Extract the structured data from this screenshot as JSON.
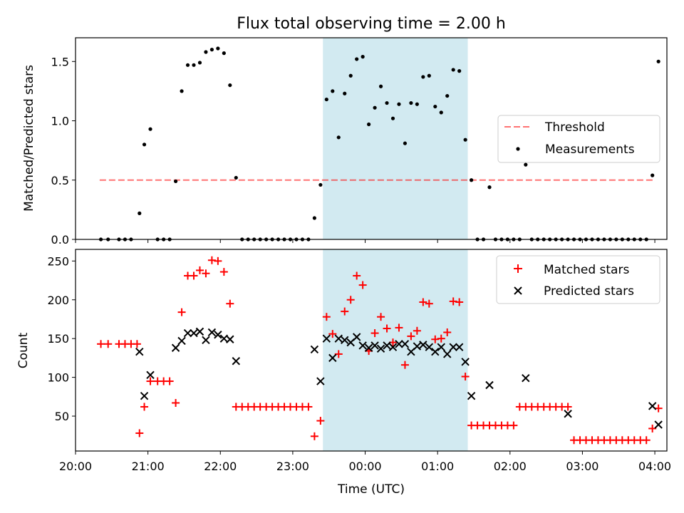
{
  "title": "Flux total observing time = 2.00 h",
  "chart_data": [
    {
      "type": "scatter",
      "ylabel": "Matched/Predicted stars",
      "ylim": [
        0,
        1.7
      ],
      "yticks": [
        "0.0",
        "0.5",
        "1.0",
        "1.5"
      ],
      "shaded_band": {
        "from": "23:25",
        "to": "01:25",
        "color": "#add8e6"
      },
      "legend": {
        "placement": "center-right",
        "items": [
          "Threshold",
          "Measurements"
        ]
      },
      "threshold": {
        "name": "Threshold",
        "color": "#ff0000",
        "value": 0.5,
        "from": "20:20",
        "to": "04:00"
      },
      "series": [
        {
          "name": "Measurements",
          "color": "#000000",
          "points": [
            [
              "20:21",
              0
            ],
            [
              "20:27",
              0
            ],
            [
              "20:36",
              0
            ],
            [
              "20:41",
              0
            ],
            [
              "20:46",
              0
            ],
            [
              "20:53",
              0.22
            ],
            [
              "20:57",
              0.8
            ],
            [
              "21:02",
              0.93
            ],
            [
              "21:08",
              0
            ],
            [
              "21:13",
              0
            ],
            [
              "21:18",
              0
            ],
            [
              "21:23",
              0.49
            ],
            [
              "21:28",
              1.25
            ],
            [
              "21:33",
              1.47
            ],
            [
              "21:38",
              1.47
            ],
            [
              "21:43",
              1.49
            ],
            [
              "21:48",
              1.58
            ],
            [
              "21:53",
              1.6
            ],
            [
              "21:58",
              1.61
            ],
            [
              "22:03",
              1.57
            ],
            [
              "22:08",
              1.3
            ],
            [
              "22:13",
              0.52
            ],
            [
              "22:18",
              0
            ],
            [
              "22:23",
              0
            ],
            [
              "22:28",
              0
            ],
            [
              "22:33",
              0
            ],
            [
              "22:38",
              0
            ],
            [
              "22:43",
              0
            ],
            [
              "22:48",
              0
            ],
            [
              "22:53",
              0
            ],
            [
              "22:58",
              0
            ],
            [
              "23:03",
              0
            ],
            [
              "23:08",
              0
            ],
            [
              "23:13",
              0
            ],
            [
              "23:18",
              0.18
            ],
            [
              "23:23",
              0.46
            ],
            [
              "23:28",
              1.18
            ],
            [
              "23:33",
              1.25
            ],
            [
              "23:38",
              0.86
            ],
            [
              "23:43",
              1.23
            ],
            [
              "23:48",
              1.38
            ],
            [
              "23:53",
              1.52
            ],
            [
              "23:58",
              1.54
            ],
            [
              "00:03",
              0.97
            ],
            [
              "00:08",
              1.11
            ],
            [
              "00:13",
              1.29
            ],
            [
              "00:18",
              1.15
            ],
            [
              "00:23",
              1.02
            ],
            [
              "00:28",
              1.14
            ],
            [
              "00:33",
              0.81
            ],
            [
              "00:38",
              1.15
            ],
            [
              "00:43",
              1.14
            ],
            [
              "00:48",
              1.37
            ],
            [
              "00:53",
              1.38
            ],
            [
              "00:58",
              1.12
            ],
            [
              "01:03",
              1.07
            ],
            [
              "01:08",
              1.21
            ],
            [
              "01:13",
              1.43
            ],
            [
              "01:18",
              1.42
            ],
            [
              "01:23",
              0.84
            ],
            [
              "01:28",
              0.5
            ],
            [
              "01:33",
              0
            ],
            [
              "01:38",
              0
            ],
            [
              "01:43",
              0.44
            ],
            [
              "01:48",
              0
            ],
            [
              "01:53",
              0
            ],
            [
              "01:58",
              0
            ],
            [
              "02:03",
              0
            ],
            [
              "02:08",
              0
            ],
            [
              "02:13",
              0.63
            ],
            [
              "02:18",
              0
            ],
            [
              "02:23",
              0
            ],
            [
              "02:28",
              0
            ],
            [
              "02:33",
              0
            ],
            [
              "02:38",
              0
            ],
            [
              "02:43",
              0
            ],
            [
              "02:48",
              0
            ],
            [
              "02:53",
              0
            ],
            [
              "02:58",
              0
            ],
            [
              "03:03",
              0
            ],
            [
              "03:08",
              0
            ],
            [
              "03:13",
              0
            ],
            [
              "03:18",
              0
            ],
            [
              "03:23",
              0
            ],
            [
              "03:28",
              0
            ],
            [
              "03:33",
              0
            ],
            [
              "03:38",
              0
            ],
            [
              "03:43",
              0
            ],
            [
              "03:48",
              0
            ],
            [
              "03:53",
              0
            ],
            [
              "03:58",
              0.54
            ],
            [
              "04:03",
              1.5
            ]
          ]
        }
      ]
    },
    {
      "type": "scatter",
      "xlabel": "Time (UTC)",
      "ylabel": "Count",
      "ylim": [
        5,
        265
      ],
      "yticks": [
        "50",
        "100",
        "150",
        "200",
        "250"
      ],
      "xlim": [
        "20:00",
        "04:10"
      ],
      "xticks": [
        "20:00",
        "21:00",
        "22:00",
        "23:00",
        "00:00",
        "01:00",
        "02:00",
        "03:00",
        "04:00"
      ],
      "shaded_band": {
        "from": "23:25",
        "to": "01:25",
        "color": "#add8e6"
      },
      "legend": {
        "placement": "top-right",
        "items": [
          "Matched stars",
          "Predicted stars"
        ]
      },
      "series": [
        {
          "name": "Matched stars",
          "marker": "+",
          "color": "#ff0000",
          "points": [
            [
              "20:21",
              143
            ],
            [
              "20:27",
              143
            ],
            [
              "20:36",
              143
            ],
            [
              "20:41",
              143
            ],
            [
              "20:46",
              143
            ],
            [
              "20:51",
              143
            ],
            [
              "20:53",
              28
            ],
            [
              "20:57",
              62
            ],
            [
              "21:02",
              95
            ],
            [
              "21:08",
              95
            ],
            [
              "21:13",
              95
            ],
            [
              "21:18",
              95
            ],
            [
              "21:23",
              67
            ],
            [
              "21:28",
              184
            ],
            [
              "21:33",
              231
            ],
            [
              "21:38",
              231
            ],
            [
              "21:43",
              238
            ],
            [
              "21:48",
              234
            ],
            [
              "21:53",
              251
            ],
            [
              "21:58",
              250
            ],
            [
              "22:03",
              236
            ],
            [
              "22:08",
              195
            ],
            [
              "22:13",
              62
            ],
            [
              "22:18",
              62
            ],
            [
              "22:23",
              62
            ],
            [
              "22:28",
              62
            ],
            [
              "22:33",
              62
            ],
            [
              "22:38",
              62
            ],
            [
              "22:43",
              62
            ],
            [
              "22:48",
              62
            ],
            [
              "22:53",
              62
            ],
            [
              "22:58",
              62
            ],
            [
              "23:03",
              62
            ],
            [
              "23:08",
              62
            ],
            [
              "23:13",
              62
            ],
            [
              "23:18",
              24
            ],
            [
              "23:23",
              44
            ],
            [
              "23:28",
              178
            ],
            [
              "23:33",
              156
            ],
            [
              "23:38",
              130
            ],
            [
              "23:43",
              185
            ],
            [
              "23:48",
              200
            ],
            [
              "23:53",
              231
            ],
            [
              "23:58",
              219
            ],
            [
              "00:03",
              134
            ],
            [
              "00:08",
              157
            ],
            [
              "00:13",
              178
            ],
            [
              "00:18",
              163
            ],
            [
              "00:23",
              145
            ],
            [
              "00:28",
              164
            ],
            [
              "00:33",
              116
            ],
            [
              "00:38",
              153
            ],
            [
              "00:43",
              160
            ],
            [
              "00:48",
              197
            ],
            [
              "00:53",
              195
            ],
            [
              "00:58",
              149
            ],
            [
              "01:03",
              150
            ],
            [
              "01:08",
              158
            ],
            [
              "01:13",
              198
            ],
            [
              "01:18",
              197
            ],
            [
              "01:23",
              101
            ],
            [
              "01:28",
              38
            ],
            [
              "01:33",
              38
            ],
            [
              "01:38",
              38
            ],
            [
              "01:43",
              38
            ],
            [
              "01:48",
              38
            ],
            [
              "01:53",
              38
            ],
            [
              "01:58",
              38
            ],
            [
              "02:03",
              38
            ],
            [
              "02:08",
              62
            ],
            [
              "02:13",
              62
            ],
            [
              "02:18",
              62
            ],
            [
              "02:23",
              62
            ],
            [
              "02:28",
              62
            ],
            [
              "02:33",
              62
            ],
            [
              "02:38",
              62
            ],
            [
              "02:43",
              62
            ],
            [
              "02:48",
              62
            ],
            [
              "02:53",
              19
            ],
            [
              "02:58",
              19
            ],
            [
              "03:03",
              19
            ],
            [
              "03:08",
              19
            ],
            [
              "03:13",
              19
            ],
            [
              "03:18",
              19
            ],
            [
              "03:23",
              19
            ],
            [
              "03:28",
              19
            ],
            [
              "03:33",
              19
            ],
            [
              "03:38",
              19
            ],
            [
              "03:43",
              19
            ],
            [
              "03:48",
              19
            ],
            [
              "03:53",
              19
            ],
            [
              "03:58",
              34
            ],
            [
              "04:03",
              60
            ]
          ]
        },
        {
          "name": "Predicted stars",
          "marker": "x",
          "color": "#000000",
          "points": [
            [
              "20:53",
              133
            ],
            [
              "20:57",
              76
            ],
            [
              "21:02",
              103
            ],
            [
              "21:23",
              138
            ],
            [
              "21:28",
              147
            ],
            [
              "21:33",
              157
            ],
            [
              "21:38",
              157
            ],
            [
              "21:43",
              159
            ],
            [
              "21:48",
              148
            ],
            [
              "21:53",
              158
            ],
            [
              "21:58",
              155
            ],
            [
              "22:03",
              150
            ],
            [
              "22:08",
              149
            ],
            [
              "22:13",
              121
            ],
            [
              "23:18",
              136
            ],
            [
              "23:23",
              95
            ],
            [
              "23:28",
              150
            ],
            [
              "23:33",
              125
            ],
            [
              "23:38",
              150
            ],
            [
              "23:43",
              148
            ],
            [
              "23:48",
              145
            ],
            [
              "23:53",
              152
            ],
            [
              "23:58",
              141
            ],
            [
              "00:03",
              138
            ],
            [
              "00:08",
              141
            ],
            [
              "00:13",
              137
            ],
            [
              "00:18",
              141
            ],
            [
              "00:23",
              139
            ],
            [
              "00:28",
              143
            ],
            [
              "00:33",
              143
            ],
            [
              "00:38",
              133
            ],
            [
              "00:43",
              140
            ],
            [
              "00:48",
              142
            ],
            [
              "00:53",
              139
            ],
            [
              "00:58",
              133
            ],
            [
              "01:03",
              139
            ],
            [
              "01:08",
              130
            ],
            [
              "01:13",
              139
            ],
            [
              "01:18",
              139
            ],
            [
              "01:23",
              120
            ],
            [
              "01:28",
              76
            ],
            [
              "01:43",
              90
            ],
            [
              "02:13",
              99
            ],
            [
              "02:48",
              53
            ],
            [
              "03:58",
              63
            ],
            [
              "04:03",
              39
            ]
          ]
        }
      ]
    }
  ]
}
